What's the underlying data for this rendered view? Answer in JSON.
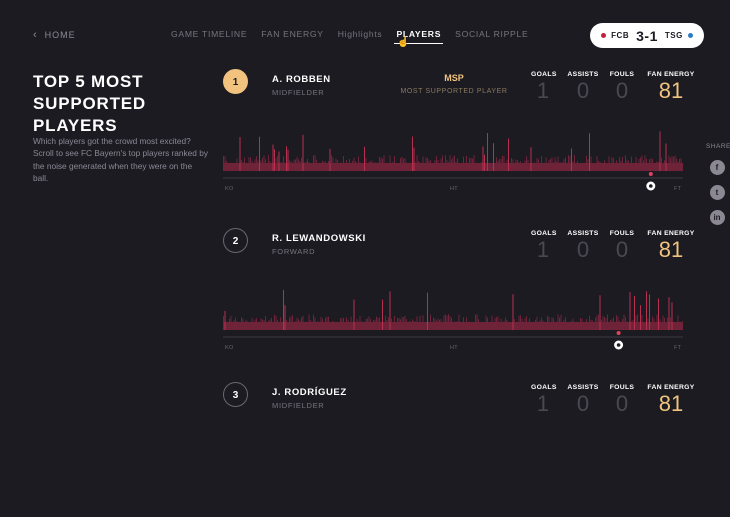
{
  "header": {
    "home_label": "HOME",
    "nav": [
      "GAME TIMELINE",
      "FAN ENERGY",
      "Highlights",
      "PLAYERS",
      "SOCIAL RIPPLE"
    ],
    "active_tab": "PLAYERS",
    "score": {
      "home": "FCB",
      "home_color": "#c4213a",
      "result": "3-1",
      "away": "TSG",
      "away_color": "#2d7ec4"
    }
  },
  "page_title": "TOP 5 MOST SUPPORTED PLAYERS",
  "intro": "Which players got the crowd most excited? Scroll to see FC Bayern's top players ranked by the noise generated when they were on the ball.",
  "share": {
    "label": "SHARE",
    "icons": [
      "facebook-icon",
      "twitter-icon",
      "linkedin-icon"
    ]
  },
  "stat_labels": {
    "goals": "GOALS",
    "assists": "ASSISTS",
    "fouls": "FOULS",
    "fan_energy": "FAN ENERGY"
  },
  "timeline_labels": {
    "start": "KO",
    "half": "HT",
    "end": "FT"
  },
  "players": [
    {
      "rank": "1",
      "name": "A. ROBBEN",
      "position": "MIDFIELDER",
      "badge": "MSP",
      "badge_sub": "MOST SUPPORTED PLAYER",
      "goals": "1",
      "assists": "0",
      "fouls": "0",
      "fan_energy": "81",
      "goal_minute_fraction": 0.93
    },
    {
      "rank": "2",
      "name": "R. LEWANDOWSKI",
      "position": "FORWARD",
      "goals": "1",
      "assists": "0",
      "fouls": "0",
      "fan_energy": "81",
      "goal_minute_fraction": 0.86
    },
    {
      "rank": "3",
      "name": "J. RODRÍGUEZ",
      "position": "MIDFIELDER",
      "goals": "1",
      "assists": "0",
      "fouls": "0",
      "fan_energy": "81"
    }
  ],
  "colors": {
    "accent": "#f1c37f",
    "wave": "#b8304f",
    "wave_dim": "#6e2338",
    "background": "#1c1b22"
  }
}
